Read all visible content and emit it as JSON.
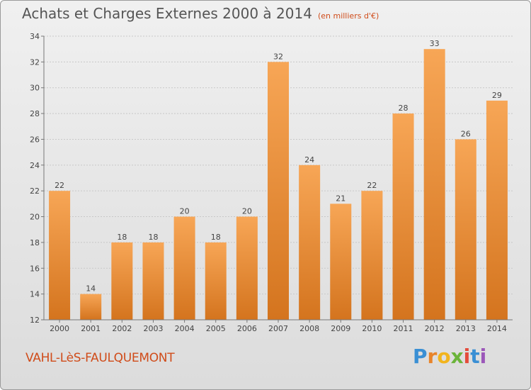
{
  "title": "Achats et Charges Externes 2000 à 2014",
  "subtitle": "(en milliers d'€)",
  "commune": "VAHL-LèS-FAULQUEMONT",
  "logo_text": "Proxiti",
  "colors": {
    "bar_light": "#f7a656",
    "bar_dark": "#d4741e",
    "title_text": "#555555",
    "accent_text": "#d04c1a"
  },
  "chart_data": {
    "type": "bar",
    "title": "Achats et Charges Externes 2000 à 2014",
    "subtitle": "(en milliers d'€)",
    "categories": [
      "2000",
      "2001",
      "2002",
      "2003",
      "2004",
      "2005",
      "2006",
      "2007",
      "2008",
      "2009",
      "2010",
      "2011",
      "2012",
      "2013",
      "2014"
    ],
    "values": [
      22,
      14,
      18,
      18,
      20,
      18,
      20,
      32,
      24,
      21,
      22,
      28,
      33,
      26,
      29
    ],
    "data_labels": [
      "22",
      "14",
      "18",
      "18",
      "20",
      "18",
      "20",
      "32",
      "24",
      "21",
      "22",
      "28",
      "33",
      "26",
      "29"
    ],
    "yticks": [
      "12",
      "14",
      "16",
      "18",
      "20",
      "22",
      "24",
      "26",
      "28",
      "30",
      "32",
      "34"
    ],
    "ylim": [
      12,
      34
    ],
    "xlabel": "",
    "ylabel": "",
    "grid": true,
    "legend": "none"
  }
}
